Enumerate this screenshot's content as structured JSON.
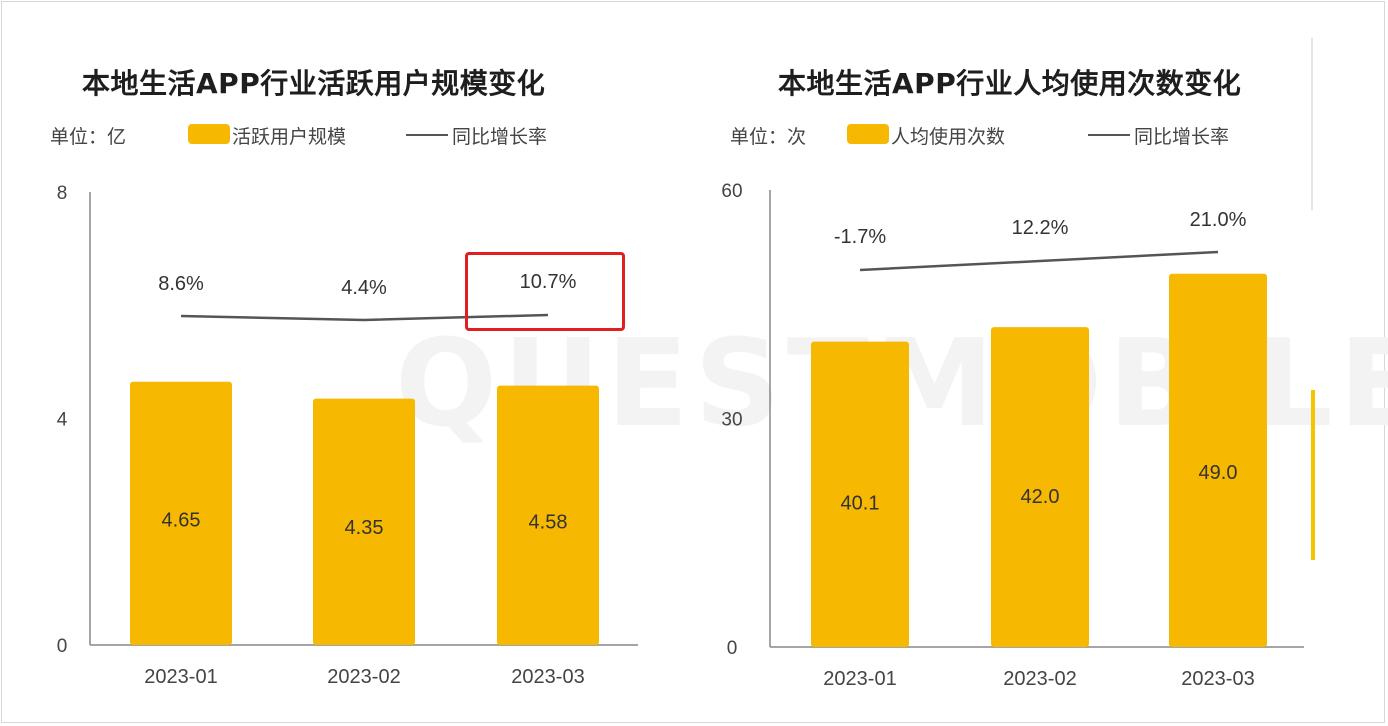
{
  "chart_data": [
    {
      "type": "bar",
      "title": "本地生活APP行业活跃用户规模变化",
      "unit_label": "单位：亿",
      "categories": [
        "2023-01",
        "2023-02",
        "2023-03"
      ],
      "series": [
        {
          "name": "活跃用户规模",
          "type": "bar",
          "values": [
            4.65,
            4.35,
            4.58
          ],
          "labels": [
            "4.65",
            "4.35",
            "4.58"
          ]
        },
        {
          "name": "同比增长率",
          "type": "line",
          "values": [
            8.6,
            4.4,
            10.7
          ],
          "labels": [
            "8.6%",
            "4.4%",
            "10.7%"
          ]
        }
      ],
      "ylim": [
        0,
        8
      ],
      "yticks": [
        "0",
        "4",
        "8"
      ],
      "highlighted_label": "10.7%"
    },
    {
      "type": "bar",
      "title": "本地生活APP行业人均使用次数变化",
      "unit_label": "单位：次",
      "categories": [
        "2023-01",
        "2023-02",
        "2023-03"
      ],
      "series": [
        {
          "name": "人均使用次数",
          "type": "bar",
          "values": [
            40.1,
            42.0,
            49.0
          ],
          "labels": [
            "40.1",
            "42.0",
            "49.0"
          ]
        },
        {
          "name": "同比增长率",
          "type": "line",
          "values": [
            -1.7,
            12.2,
            21.0
          ],
          "labels": [
            "-1.7%",
            "12.2%",
            "21.0%"
          ]
        }
      ],
      "ylim": [
        0,
        60
      ],
      "yticks": [
        "0",
        "30",
        "60"
      ]
    }
  ],
  "colors": {
    "bar": "#f6b800",
    "line": "#555555",
    "highlight": "#e02020"
  },
  "watermark": "QUESTMOBILE"
}
